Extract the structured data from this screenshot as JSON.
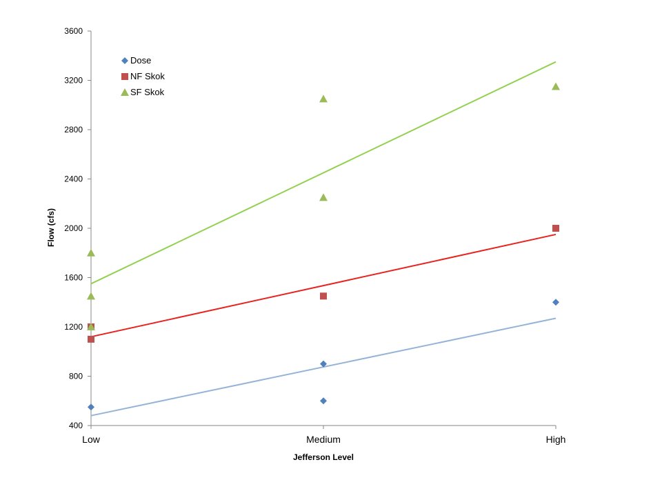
{
  "chart_data": {
    "type": "scatter",
    "title": "",
    "xlabel": "Jefferson Level",
    "ylabel": "Flow (cfs)",
    "categories": [
      "Low",
      "Medium",
      "High"
    ],
    "ylim": [
      400,
      3600
    ],
    "yticks": [
      400,
      800,
      1200,
      1600,
      2000,
      2400,
      2800,
      3200,
      3600
    ],
    "grid": false,
    "legend_position": "top-left",
    "series": [
      {
        "name": "Dose",
        "marker": "diamond",
        "marker_color": "#4F81BD",
        "trend_color": "#95B3D7",
        "points": [
          {
            "x": "Low",
            "y": 550
          },
          {
            "x": "Medium",
            "y": 900
          },
          {
            "x": "Medium",
            "y": 600
          },
          {
            "x": "High",
            "y": 1400
          }
        ],
        "trendline": {
          "start": 480,
          "end": 1270
        }
      },
      {
        "name": "NF Skok",
        "marker": "square",
        "marker_color": "#C0504D",
        "trend_color": "#E8231E",
        "points": [
          {
            "x": "Low",
            "y": 1100
          },
          {
            "x": "Low",
            "y": 1200
          },
          {
            "x": "Medium",
            "y": 1450
          },
          {
            "x": "High",
            "y": 2000
          }
        ],
        "trendline": {
          "start": 1120,
          "end": 1950
        }
      },
      {
        "name": "SF Skok",
        "marker": "triangle",
        "marker_color": "#9BBB59",
        "trend_color": "#92D050",
        "points": [
          {
            "x": "Low",
            "y": 1800
          },
          {
            "x": "Low",
            "y": 1450
          },
          {
            "x": "Low",
            "y": 1200
          },
          {
            "x": "Medium",
            "y": 3050
          },
          {
            "x": "Medium",
            "y": 2250
          },
          {
            "x": "High",
            "y": 3150
          }
        ],
        "trendline": {
          "start": 1550,
          "end": 3350
        }
      }
    ]
  }
}
